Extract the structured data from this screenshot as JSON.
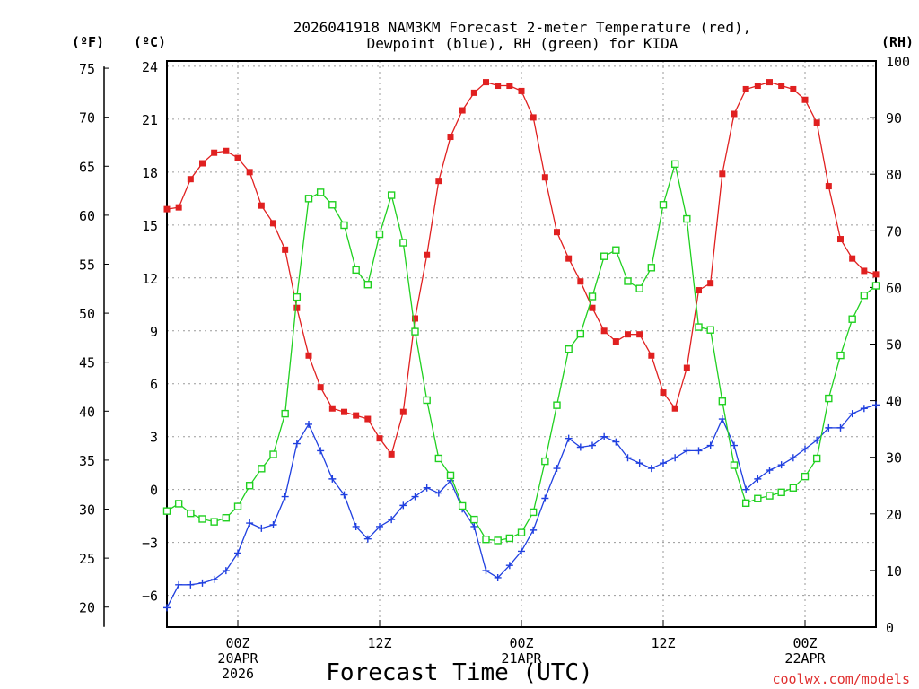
{
  "chart_data": {
    "type": "line",
    "title_line1": "2026041918 NAM3KM Forecast 2-meter Temperature (red),",
    "title_line2": "Dewpoint (blue), RH (green) for KIDA",
    "xlabel": "Forecast Time (UTC)",
    "credit": "coolwx.com/models",
    "left_unit_f": "(ºF)",
    "left_unit_c": "(ºC)",
    "right_unit": "(RH)",
    "celsius_ticks": [
      "24",
      "21",
      "18",
      "15",
      "12",
      "9",
      "6",
      "3",
      "0",
      "−3",
      "−6"
    ],
    "fahrenheit_ticks": [
      "75",
      "70",
      "65",
      "60",
      "55",
      "50",
      "45",
      "40",
      "35",
      "30",
      "25",
      "20"
    ],
    "rh_ticks": [
      "100",
      "90",
      "80",
      "70",
      "60",
      "50",
      "40",
      "30",
      "20",
      "10",
      "0"
    ],
    "ylim_celsius": [
      -7.8,
      24.3
    ],
    "ylim_rh": [
      0,
      100
    ],
    "xlim_hours": [
      -6,
      54
    ],
    "x_ticks": [
      {
        "hour": 0,
        "lines": [
          "00Z",
          "20APR",
          "2026"
        ]
      },
      {
        "hour": 12,
        "lines": [
          "12Z"
        ]
      },
      {
        "hour": 24,
        "lines": [
          "00Z",
          "21APR"
        ]
      },
      {
        "hour": 36,
        "lines": [
          "12Z"
        ]
      },
      {
        "hour": 48,
        "lines": [
          "00Z",
          "22APR"
        ]
      }
    ],
    "x_hours": [
      -6,
      -5,
      -4,
      -3,
      -2,
      -1,
      0,
      1,
      2,
      3,
      4,
      5,
      6,
      7,
      8,
      9,
      10,
      11,
      12,
      13,
      14,
      15,
      16,
      17,
      18,
      19,
      20,
      21,
      22,
      23,
      24,
      25,
      26,
      27,
      28,
      29,
      30,
      31,
      32,
      33,
      34,
      35,
      36,
      37,
      38,
      39,
      40,
      41,
      42,
      43,
      44,
      45,
      46,
      47,
      48,
      49,
      50,
      51,
      52,
      53,
      54
    ],
    "series": [
      {
        "name": "2-meter Temperature (°C)",
        "color": "#e02020",
        "marker": "filled-square",
        "axis": "left",
        "values": [
          15.9,
          16.0,
          17.6,
          18.5,
          19.1,
          19.2,
          18.8,
          18.0,
          16.1,
          15.1,
          13.6,
          10.3,
          7.6,
          5.8,
          4.6,
          4.4,
          4.2,
          4.0,
          2.9,
          2.0,
          4.4,
          9.7,
          13.3,
          17.5,
          20.0,
          21.5,
          22.5,
          23.1,
          22.9,
          22.9,
          22.6,
          21.1,
          17.7,
          14.6,
          13.1,
          11.8,
          10.3,
          9.0,
          8.4,
          8.8,
          8.8,
          7.6,
          5.5,
          4.6,
          6.9,
          11.3,
          11.7,
          17.9,
          21.3,
          22.7,
          22.9,
          23.1,
          22.9,
          22.7,
          22.1,
          20.8,
          17.2,
          14.2,
          13.1,
          12.4,
          12.2
        ]
      },
      {
        "name": "Dewpoint (°C)",
        "color": "#2040e0",
        "marker": "plus",
        "axis": "left",
        "values": [
          -6.7,
          -5.4,
          -5.4,
          -5.3,
          -5.1,
          -4.6,
          -3.6,
          -1.9,
          -2.2,
          -2.0,
          -0.4,
          2.6,
          3.7,
          2.2,
          0.6,
          -0.3,
          -2.1,
          -2.8,
          -2.1,
          -1.7,
          -0.9,
          -0.4,
          0.1,
          -0.2,
          0.5,
          -1.1,
          -2.1,
          -4.6,
          -5.0,
          -4.3,
          -3.5,
          -2.3,
          -0.5,
          1.2,
          2.9,
          2.4,
          2.5,
          3.0,
          2.7,
          1.8,
          1.5,
          1.2,
          1.5,
          1.8,
          2.2,
          2.2,
          2.5,
          4.0,
          2.5,
          0.0,
          0.6,
          1.1,
          1.4,
          1.8,
          2.3,
          2.8,
          3.5,
          3.5,
          4.3,
          4.6,
          4.8
        ]
      },
      {
        "name": "RH (%)",
        "color": "#20d020",
        "marker": "open-square",
        "axis": "right",
        "values": [
          20.5,
          21.8,
          20.1,
          19.1,
          18.6,
          19.3,
          21.3,
          25.0,
          28.0,
          30.5,
          37.7,
          58.3,
          75.7,
          76.8,
          74.6,
          71.0,
          63.1,
          60.5,
          69.4,
          76.3,
          67.9,
          52.2,
          40.1,
          29.8,
          26.8,
          21.4,
          19.0,
          15.5,
          15.3,
          15.7,
          16.7,
          20.3,
          29.3,
          39.2,
          49.1,
          51.8,
          58.4,
          65.5,
          66.6,
          61.1,
          59.8,
          63.5,
          74.6,
          81.8,
          72.1,
          53.0,
          52.5,
          39.9,
          28.6,
          21.9,
          22.7,
          23.2,
          23.8,
          24.6,
          26.6,
          29.8,
          40.4,
          48.0,
          54.4,
          58.6,
          60.3
        ]
      }
    ]
  }
}
